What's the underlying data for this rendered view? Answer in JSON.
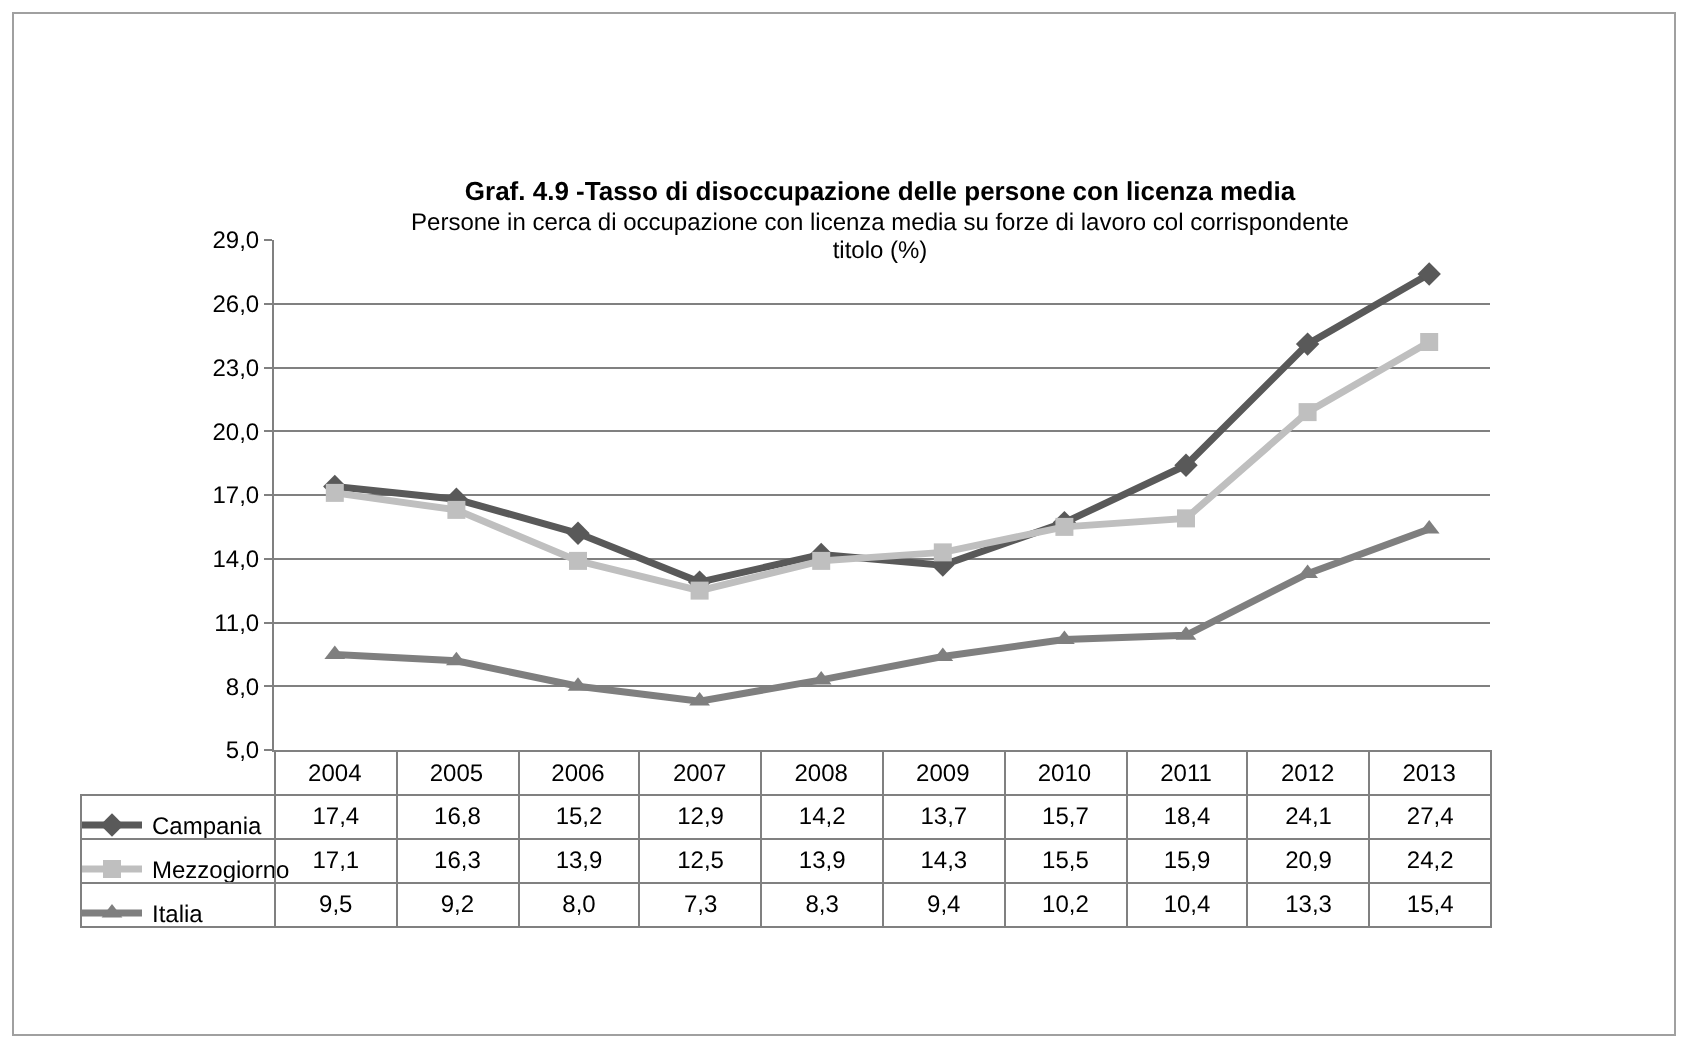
{
  "chart_data": {
    "type": "line",
    "title": "Graf. 4.9 -Tasso di disoccupazione delle persone con licenza media",
    "subtitle": "Persone in cerca di occupazione con licenza media su forze di lavoro col corrispondente titolo (%)",
    "categories": [
      "2004",
      "2005",
      "2006",
      "2007",
      "2008",
      "2009",
      "2010",
      "2011",
      "2012",
      "2013"
    ],
    "series": [
      {
        "name": "Campania",
        "color": "#595959",
        "marker": "diamond",
        "values": [
          17.4,
          16.8,
          15.2,
          12.9,
          14.2,
          13.7,
          15.7,
          18.4,
          24.1,
          27.4
        ],
        "value_labels": [
          "17,4",
          "16,8",
          "15,2",
          "12,9",
          "14,2",
          "13,7",
          "15,7",
          "18,4",
          "24,1",
          "27,4"
        ]
      },
      {
        "name": "Mezzogiorno",
        "color": "#bfbfbf",
        "marker": "square",
        "values": [
          17.1,
          16.3,
          13.9,
          12.5,
          13.9,
          14.3,
          15.5,
          15.9,
          20.9,
          24.2
        ],
        "value_labels": [
          "17,1",
          "16,3",
          "13,9",
          "12,5",
          "13,9",
          "14,3",
          "15,5",
          "15,9",
          "20,9",
          "24,2"
        ]
      },
      {
        "name": "Italia",
        "color": "#7f7f7f",
        "marker": "triangle",
        "values": [
          9.5,
          9.2,
          8.0,
          7.3,
          8.3,
          9.4,
          10.2,
          10.4,
          13.3,
          15.4
        ],
        "value_labels": [
          "9,5",
          "9,2",
          "8,0",
          "7,3",
          "8,3",
          "9,4",
          "10,2",
          "10,4",
          "13,3",
          "15,4"
        ]
      }
    ],
    "ylim": [
      5,
      29
    ],
    "yticks": [
      {
        "value": 5,
        "label": "5,0"
      },
      {
        "value": 8,
        "label": "8,0"
      },
      {
        "value": 11,
        "label": "11,0"
      },
      {
        "value": 14,
        "label": "14,0"
      },
      {
        "value": 17,
        "label": "17,0"
      },
      {
        "value": 20,
        "label": "20,0"
      },
      {
        "value": 23,
        "label": "23,0"
      },
      {
        "value": 26,
        "label": "26,0"
      },
      {
        "value": 29,
        "label": "29,0"
      }
    ],
    "grid": "y",
    "legend": "bottom left",
    "line_style": "solid"
  }
}
